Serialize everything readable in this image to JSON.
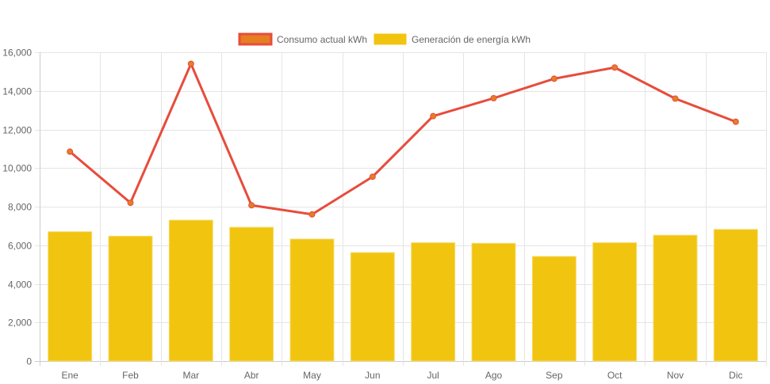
{
  "chart_data": {
    "type": "bar",
    "title": "",
    "xlabel": "",
    "ylabel": "",
    "categories": [
      "Ene",
      "Feb",
      "Mar",
      "Abr",
      "May",
      "Jun",
      "Jul",
      "Ago",
      "Sep",
      "Oct",
      "Nov",
      "Dic"
    ],
    "series": [
      {
        "name": "Consumo actual kWh",
        "type": "line",
        "color": "#e74c3c",
        "point_color": "#e67e22",
        "values": [
          10850,
          8200,
          15400,
          8070,
          7600,
          9550,
          12690,
          13620,
          14630,
          15210,
          13600,
          12400
        ]
      },
      {
        "name": "Generación de energía kWh",
        "type": "bar",
        "color": "#f1c40f",
        "values": [
          6700,
          6470,
          7300,
          6930,
          6320,
          5620,
          6130,
          6100,
          5420,
          6130,
          6520,
          6820
        ]
      }
    ],
    "ylim": [
      0,
      16000
    ],
    "yticks": [
      0,
      2000,
      4000,
      6000,
      8000,
      10000,
      12000,
      14000,
      16000
    ],
    "ytick_labels": [
      "0",
      "2,000",
      "4,000",
      "6,000",
      "8,000",
      "10,000",
      "12,000",
      "14,000",
      "16,000"
    ],
    "grid": true,
    "legend": {
      "position": "top-center",
      "entries": [
        {
          "label": "Consumo actual kWh",
          "fill": "#e67e22",
          "border": "#e74c3c"
        },
        {
          "label": "Generación de energía kWh",
          "fill": "#f1c40f",
          "border": "#f1c40f"
        }
      ]
    }
  }
}
